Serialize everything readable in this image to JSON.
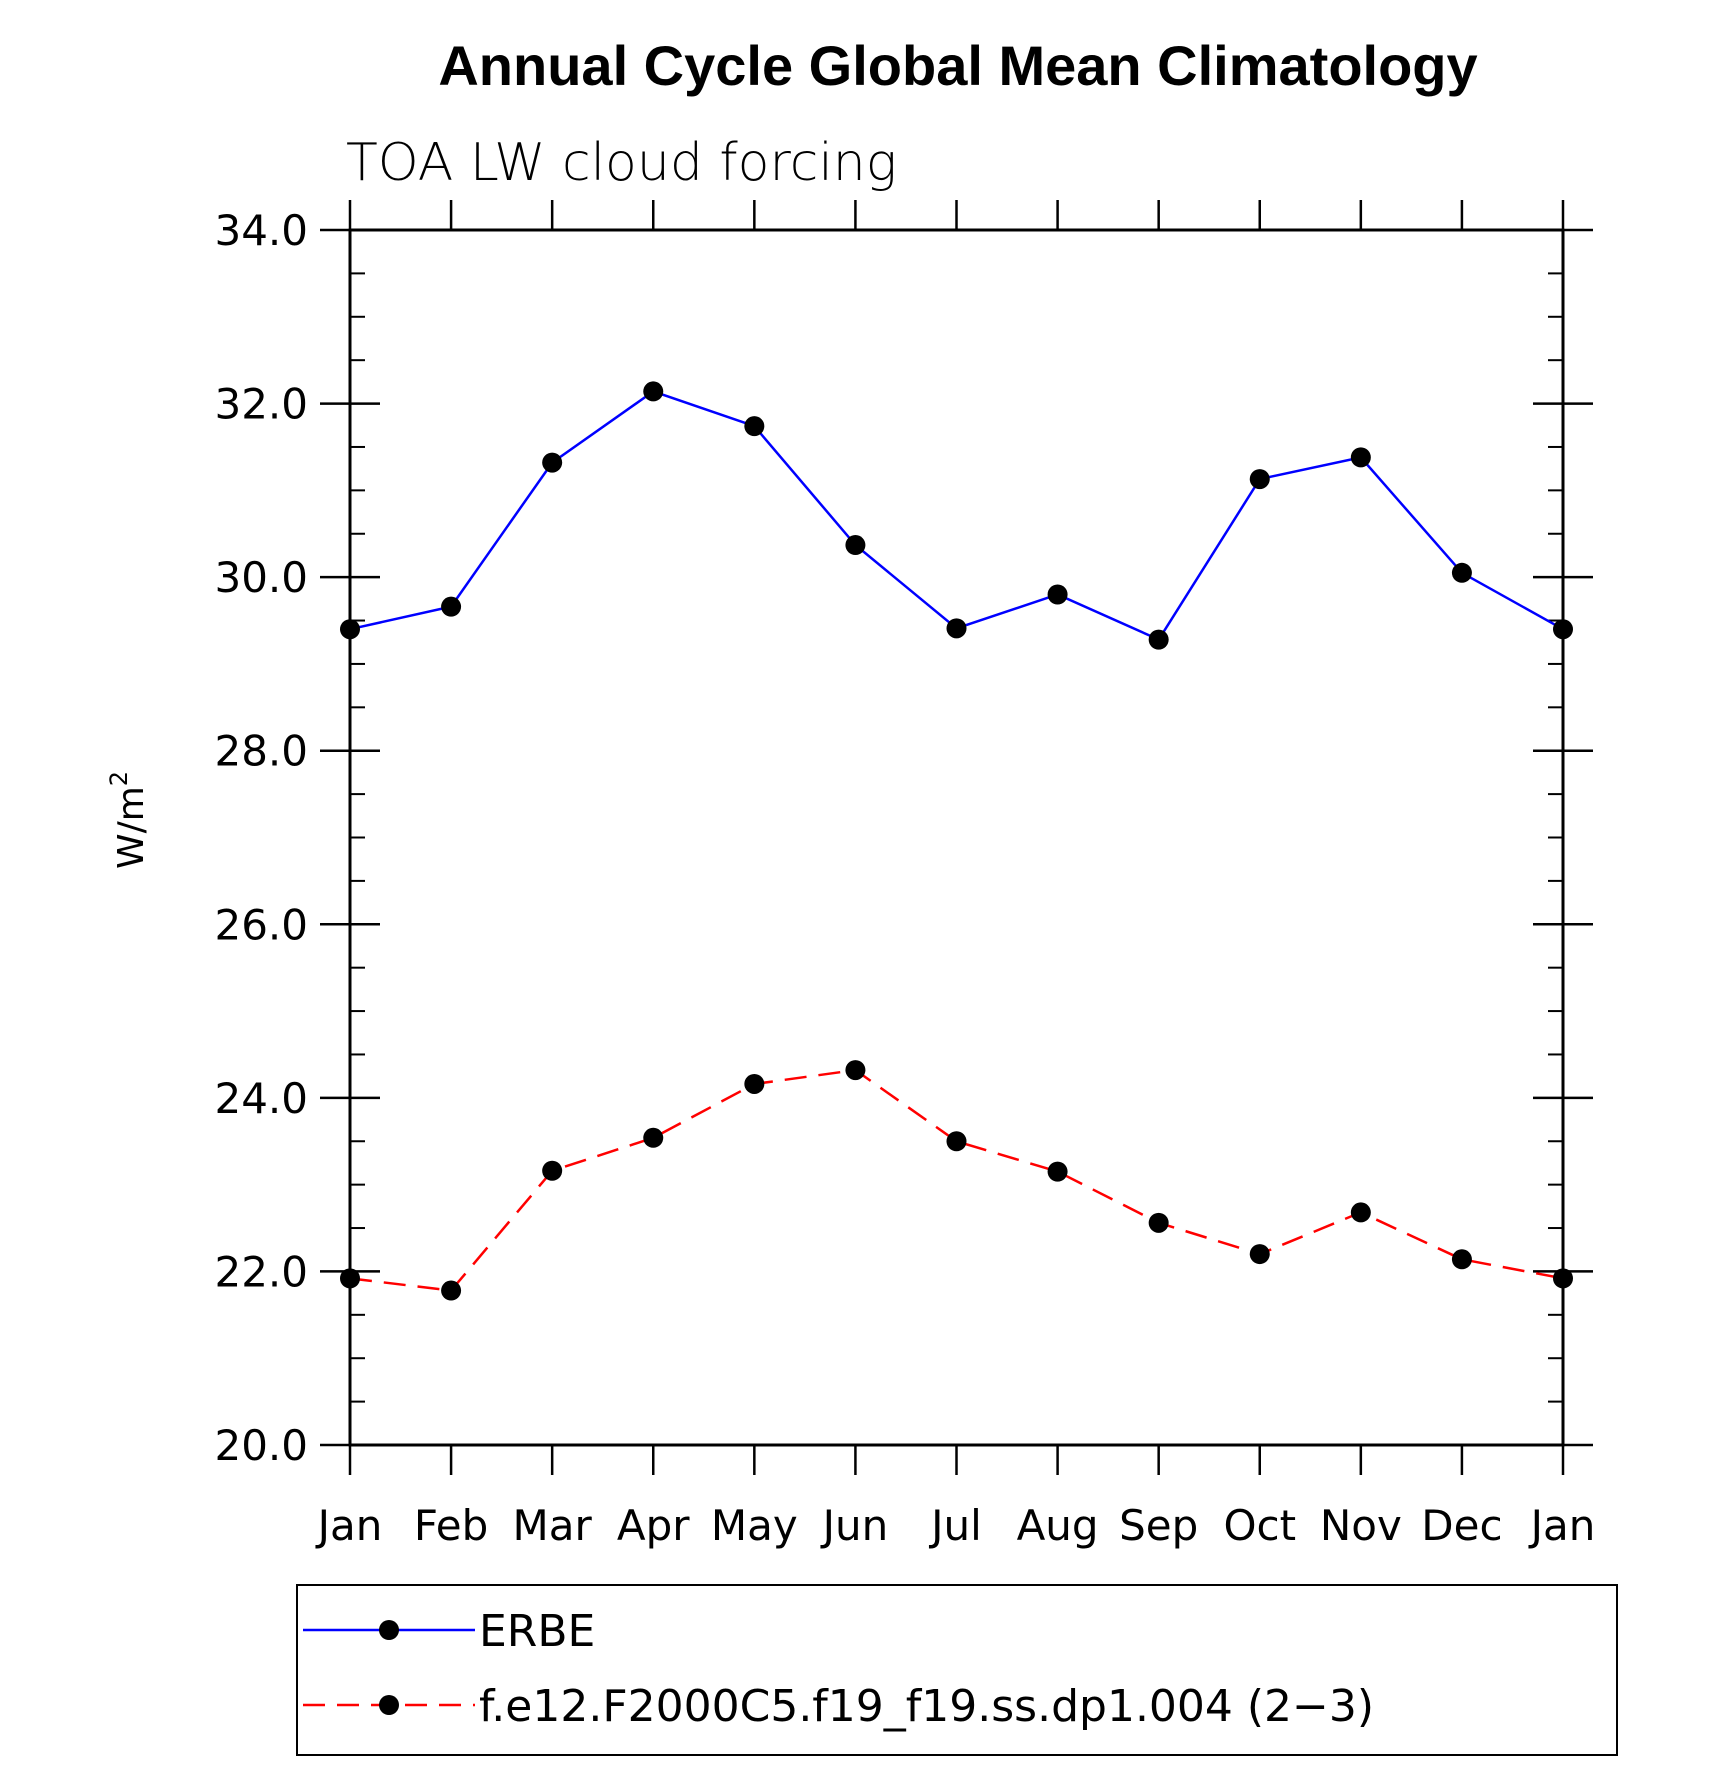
{
  "chart_data": {
    "type": "line",
    "title": "Annual Cycle Global Mean Climatology",
    "subtitle": "TOA LW cloud forcing",
    "ylabel": "W/m",
    "ylabel_sup": "2",
    "xlabel": "",
    "categories": [
      "Jan",
      "Feb",
      "Mar",
      "Apr",
      "May",
      "Jun",
      "Jul",
      "Aug",
      "Sep",
      "Oct",
      "Nov",
      "Dec",
      "Jan"
    ],
    "ylim": [
      20.0,
      34.0
    ],
    "yticks": [
      20.0,
      22.0,
      24.0,
      26.0,
      28.0,
      30.0,
      32.0,
      34.0
    ],
    "ytick_labels": [
      "20.0",
      "22.0",
      "24.0",
      "26.0",
      "28.0",
      "30.0",
      "32.0",
      "34.0"
    ],
    "grid": false,
    "legend_position": "bottom",
    "series": [
      {
        "name": "ERBE",
        "color": "#0000ff",
        "dash": "solid",
        "marker": "filled-circle",
        "values": [
          29.4,
          29.66,
          31.32,
          32.14,
          31.74,
          30.37,
          29.41,
          29.8,
          29.28,
          31.13,
          31.38,
          30.05,
          29.4
        ]
      },
      {
        "name": "f.e12.F2000C5.f19_f19.ss.dp1.004 (2−3)",
        "color": "#ff0000",
        "dash": "dashed",
        "marker": "filled-circle",
        "values": [
          21.92,
          21.78,
          23.16,
          23.54,
          24.16,
          24.32,
          23.5,
          23.15,
          22.56,
          22.2,
          22.68,
          22.14,
          21.92
        ]
      }
    ]
  }
}
